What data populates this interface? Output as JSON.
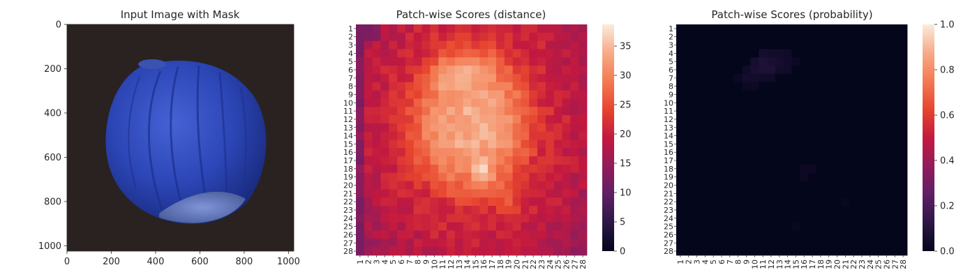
{
  "chart_data": [
    {
      "type": "image",
      "title": "Input Image with Mask",
      "xlim": [
        0,
        1024
      ],
      "ylim": [
        1024,
        0
      ],
      "xticks": [
        "0",
        "200",
        "400",
        "600",
        "800",
        "1000"
      ],
      "yticks": [
        "0",
        "200",
        "400",
        "600",
        "800",
        "1000"
      ],
      "background_color": "#2a2220",
      "object_color": "#2c46b6",
      "description_colors": {
        "shadow": "#1b2a6e",
        "highlight": "#5a78e0",
        "base": "#4a5d9a"
      }
    },
    {
      "type": "heatmap",
      "title": "Patch-wise Scores (distance)",
      "rows": 28,
      "cols": 28,
      "tick_labels": [
        "1",
        "2",
        "3",
        "4",
        "5",
        "6",
        "7",
        "8",
        "9",
        "10",
        "11",
        "12",
        "13",
        "14",
        "15",
        "16",
        "17",
        "18",
        "19",
        "20",
        "21",
        "22",
        "23",
        "24",
        "25",
        "26",
        "27",
        "28"
      ],
      "value_range": [
        0,
        38.7
      ],
      "colorbar_ticks": [
        "0",
        "5",
        "10",
        "15",
        "20",
        "25",
        "30",
        "35"
      ],
      "colormap": "rocket",
      "pattern": "elliptical high region centered on patch (col 14, row 12); peaks ~38 near rows 5-8 cols 10-16 and rows 18-20 cols 15-17; border ~18-22; lowest (~14) at left edge column 1 and top-left rows 1-2"
    },
    {
      "type": "heatmap",
      "title": "Patch-wise Scores (probability)",
      "rows": 28,
      "cols": 28,
      "tick_labels": [
        "1",
        "2",
        "3",
        "4",
        "5",
        "6",
        "7",
        "8",
        "9",
        "10",
        "11",
        "12",
        "13",
        "14",
        "15",
        "16",
        "17",
        "18",
        "19",
        "20",
        "21",
        "22",
        "23",
        "24",
        "25",
        "26",
        "27",
        "28"
      ],
      "value_range": [
        0,
        1.0
      ],
      "colorbar_ticks": [
        "0.0",
        "0.2",
        "0.4",
        "0.6",
        "0.8",
        "1.0"
      ],
      "colormap": "rocket",
      "hot_cells": [
        {
          "row": 4,
          "col": 11,
          "value": 0.06
        },
        {
          "row": 4,
          "col": 12,
          "value": 0.05
        },
        {
          "row": 4,
          "col": 13,
          "value": 0.05
        },
        {
          "row": 4,
          "col": 14,
          "value": 0.04
        },
        {
          "row": 5,
          "col": 10,
          "value": 0.06
        },
        {
          "row": 5,
          "col": 11,
          "value": 0.08
        },
        {
          "row": 5,
          "col": 12,
          "value": 0.07
        },
        {
          "row": 5,
          "col": 13,
          "value": 0.06
        },
        {
          "row": 5,
          "col": 14,
          "value": 0.04
        },
        {
          "row": 5,
          "col": 15,
          "value": 0.03
        },
        {
          "row": 6,
          "col": 9,
          "value": 0.04
        },
        {
          "row": 6,
          "col": 10,
          "value": 0.07
        },
        {
          "row": 6,
          "col": 11,
          "value": 0.08
        },
        {
          "row": 6,
          "col": 12,
          "value": 0.08
        },
        {
          "row": 6,
          "col": 13,
          "value": 0.05
        },
        {
          "row": 6,
          "col": 14,
          "value": 0.04
        },
        {
          "row": 7,
          "col": 8,
          "value": 0.03
        },
        {
          "row": 7,
          "col": 9,
          "value": 0.05
        },
        {
          "row": 7,
          "col": 10,
          "value": 0.05
        },
        {
          "row": 7,
          "col": 11,
          "value": 0.04
        },
        {
          "row": 7,
          "col": 12,
          "value": 0.04
        },
        {
          "row": 8,
          "col": 9,
          "value": 0.03
        },
        {
          "row": 8,
          "col": 10,
          "value": 0.03
        },
        {
          "row": 18,
          "col": 16,
          "value": 0.03
        },
        {
          "row": 18,
          "col": 17,
          "value": 0.03
        },
        {
          "row": 19,
          "col": 16,
          "value": 0.03
        },
        {
          "row": 22,
          "col": 21,
          "value": 0.02
        },
        {
          "row": 25,
          "col": 15,
          "value": 0.02
        }
      ]
    }
  ]
}
